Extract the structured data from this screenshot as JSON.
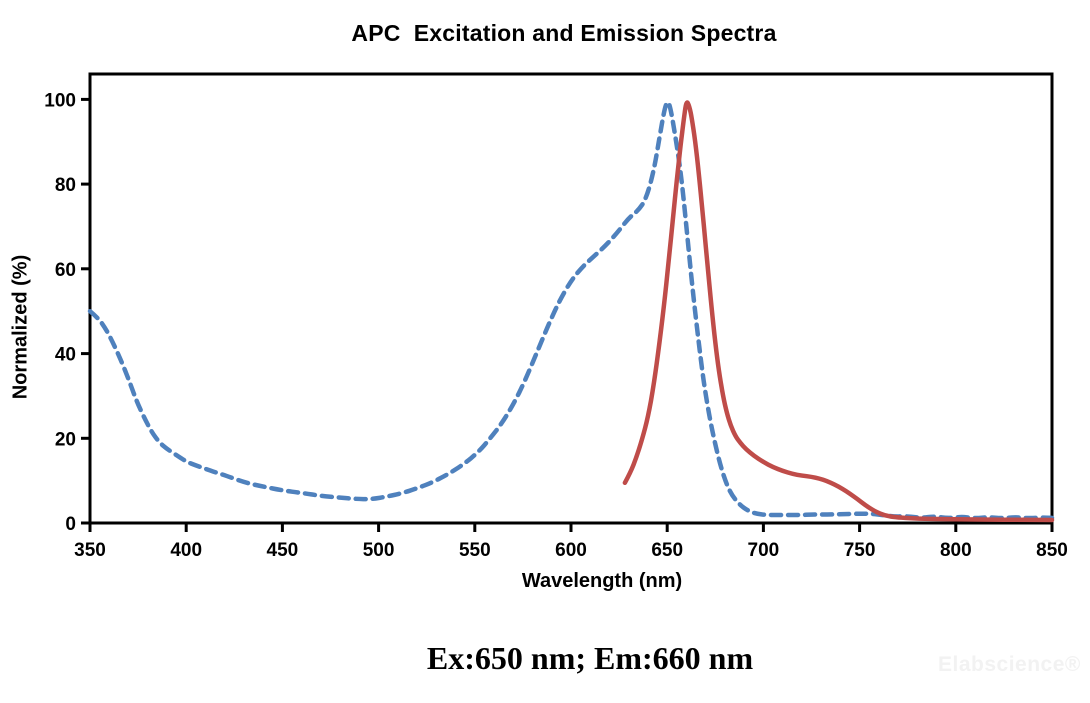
{
  "figure": {
    "watermark": "Elabscience®"
  },
  "chart_data": {
    "type": "line",
    "title": "APC  Excitation and Emission Spectra",
    "xlabel": "Wavelength (nm)",
    "ylabel": "Normalized (%)",
    "xlim": [
      350,
      850
    ],
    "ylim": [
      0,
      106
    ],
    "xticks": [
      350,
      400,
      450,
      500,
      550,
      600,
      650,
      700,
      750,
      800,
      850
    ],
    "yticks": [
      0,
      20,
      40,
      60,
      80,
      100
    ],
    "grid": false,
    "legend": "none",
    "plot_border": true,
    "axis_color": "#000000",
    "excitation_max_nm": 650,
    "emission_max_nm": 660,
    "annotations": [
      "Ex:650 nm; Em:660 nm"
    ],
    "series": [
      {
        "name": "Excitation",
        "line_style": "dashed",
        "color": "#4f81bd",
        "points": [
          [
            350,
            50
          ],
          [
            354,
            48.5
          ],
          [
            358,
            46
          ],
          [
            362,
            42.5
          ],
          [
            366,
            38.5
          ],
          [
            370,
            34
          ],
          [
            374,
            29
          ],
          [
            378,
            25
          ],
          [
            382,
            21.5
          ],
          [
            386,
            19
          ],
          [
            390,
            17.5
          ],
          [
            395,
            16
          ],
          [
            400,
            14.5
          ],
          [
            405,
            13.6
          ],
          [
            410,
            12.8
          ],
          [
            415,
            12
          ],
          [
            420,
            11.3
          ],
          [
            430,
            9.6
          ],
          [
            440,
            8.6
          ],
          [
            450,
            7.7
          ],
          [
            460,
            7.1
          ],
          [
            470,
            6.4
          ],
          [
            480,
            6
          ],
          [
            488,
            5.7
          ],
          [
            496,
            5.6
          ],
          [
            504,
            6.2
          ],
          [
            512,
            7
          ],
          [
            520,
            8.2
          ],
          [
            528,
            9.6
          ],
          [
            536,
            11.5
          ],
          [
            544,
            13.8
          ],
          [
            552,
            16.8
          ],
          [
            558,
            20
          ],
          [
            564,
            23.5
          ],
          [
            570,
            28
          ],
          [
            576,
            33.5
          ],
          [
            582,
            40
          ],
          [
            588,
            46.5
          ],
          [
            594,
            52.5
          ],
          [
            600,
            57.2
          ],
          [
            606,
            60.5
          ],
          [
            612,
            63
          ],
          [
            618,
            65.5
          ],
          [
            624,
            68.5
          ],
          [
            630,
            72
          ],
          [
            635,
            73.8
          ],
          [
            639,
            76.5
          ],
          [
            643,
            83
          ],
          [
            646,
            91
          ],
          [
            648.5,
            97.5
          ],
          [
            650,
            99.7
          ],
          [
            651.5,
            98.5
          ],
          [
            654,
            92
          ],
          [
            657,
            83
          ],
          [
            660,
            70
          ],
          [
            663,
            56
          ],
          [
            666,
            44
          ],
          [
            669,
            33
          ],
          [
            672,
            25
          ],
          [
            675,
            18.5
          ],
          [
            678,
            13
          ],
          [
            681,
            9
          ],
          [
            684,
            6.3
          ],
          [
            688,
            4.2
          ],
          [
            692,
            2.9
          ],
          [
            696,
            2.2
          ],
          [
            702,
            1.9
          ],
          [
            710,
            1.9
          ],
          [
            718,
            1.9
          ],
          [
            726,
            2
          ],
          [
            734,
            2
          ],
          [
            742,
            2.1
          ],
          [
            750,
            2.2
          ],
          [
            756,
            2.2
          ],
          [
            762,
            1.9
          ],
          [
            768,
            1.5
          ],
          [
            775,
            1.6
          ],
          [
            782,
            1.2
          ],
          [
            789,
            1.6
          ],
          [
            796,
            1.1
          ],
          [
            803,
            1.5
          ],
          [
            810,
            1.1
          ],
          [
            817,
            1.4
          ],
          [
            824,
            1.1
          ],
          [
            831,
            1.4
          ],
          [
            838,
            1.1
          ],
          [
            845,
            1.3
          ],
          [
            850,
            1.2
          ]
        ]
      },
      {
        "name": "Emission",
        "line_style": "solid",
        "color": "#bf4c49",
        "points": [
          [
            628,
            9.5
          ],
          [
            631,
            12
          ],
          [
            634,
            15.5
          ],
          [
            637,
            19.8
          ],
          [
            640,
            25
          ],
          [
            643,
            32.5
          ],
          [
            646,
            42.5
          ],
          [
            649,
            54
          ],
          [
            651,
            63
          ],
          [
            653,
            72
          ],
          [
            655,
            81
          ],
          [
            657,
            89.5
          ],
          [
            658.5,
            95
          ],
          [
            660,
            99.8
          ],
          [
            661.5,
            98.5
          ],
          [
            663,
            95
          ],
          [
            665,
            88.5
          ],
          [
            667,
            80
          ],
          [
            669,
            70.5
          ],
          [
            671,
            60.5
          ],
          [
            673,
            51
          ],
          [
            675,
            42.5
          ],
          [
            677,
            35.5
          ],
          [
            679,
            30
          ],
          [
            681,
            26
          ],
          [
            683,
            23
          ],
          [
            685.5,
            20.5
          ],
          [
            688,
            18.9
          ],
          [
            691,
            17.4
          ],
          [
            695,
            15.9
          ],
          [
            700,
            14.4
          ],
          [
            705,
            13.2
          ],
          [
            710,
            12.3
          ],
          [
            715,
            11.6
          ],
          [
            720,
            11.2
          ],
          [
            725,
            10.9
          ],
          [
            729,
            10.5
          ],
          [
            733,
            9.9
          ],
          [
            737,
            9.1
          ],
          [
            741,
            8.1
          ],
          [
            745,
            6.9
          ],
          [
            749,
            5.6
          ],
          [
            753,
            4.2
          ],
          [
            757,
            3
          ],
          [
            761,
            2.1
          ],
          [
            765,
            1.6
          ],
          [
            770,
            1.3
          ],
          [
            777,
            1.1
          ],
          [
            785,
            1
          ],
          [
            795,
            0.9
          ],
          [
            805,
            0.85
          ],
          [
            818,
            0.8
          ],
          [
            832,
            0.75
          ],
          [
            850,
            0.7
          ]
        ]
      }
    ]
  }
}
